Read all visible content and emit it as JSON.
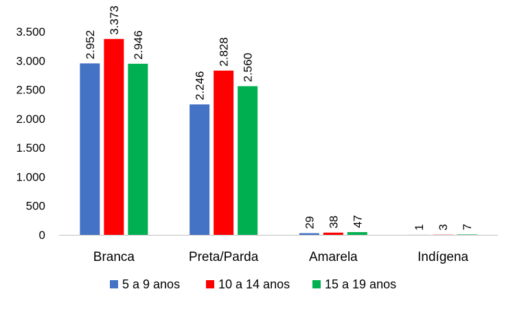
{
  "chart_data": {
    "type": "bar",
    "categories": [
      "Branca",
      "Preta/Parda",
      "Amarela",
      "Indígena"
    ],
    "series": [
      {
        "name": "5 a 9 anos",
        "color": "#4472C4",
        "values": [
          2952,
          2246,
          29,
          1
        ],
        "labels": [
          "2.952",
          "2.246",
          "29",
          "1"
        ]
      },
      {
        "name": "10 a 14 anos",
        "color": "#FF0000",
        "values": [
          3373,
          2828,
          38,
          3
        ],
        "labels": [
          "3.373",
          "2.828",
          "38",
          "3"
        ]
      },
      {
        "name": "15 a 19 anos",
        "color": "#00B050",
        "values": [
          2946,
          2560,
          47,
          7
        ],
        "labels": [
          "2.946",
          "2.560",
          "47",
          "7"
        ]
      }
    ],
    "ylim": [
      0,
      3500
    ],
    "yticks": [
      0,
      500,
      1000,
      1500,
      2000,
      2500,
      3000,
      3500
    ],
    "ytick_labels": [
      "0",
      "500",
      "1.000",
      "1.500",
      "2.000",
      "2.500",
      "3.000",
      "3.500"
    ],
    "grid": false,
    "legend_position": "bottom"
  }
}
